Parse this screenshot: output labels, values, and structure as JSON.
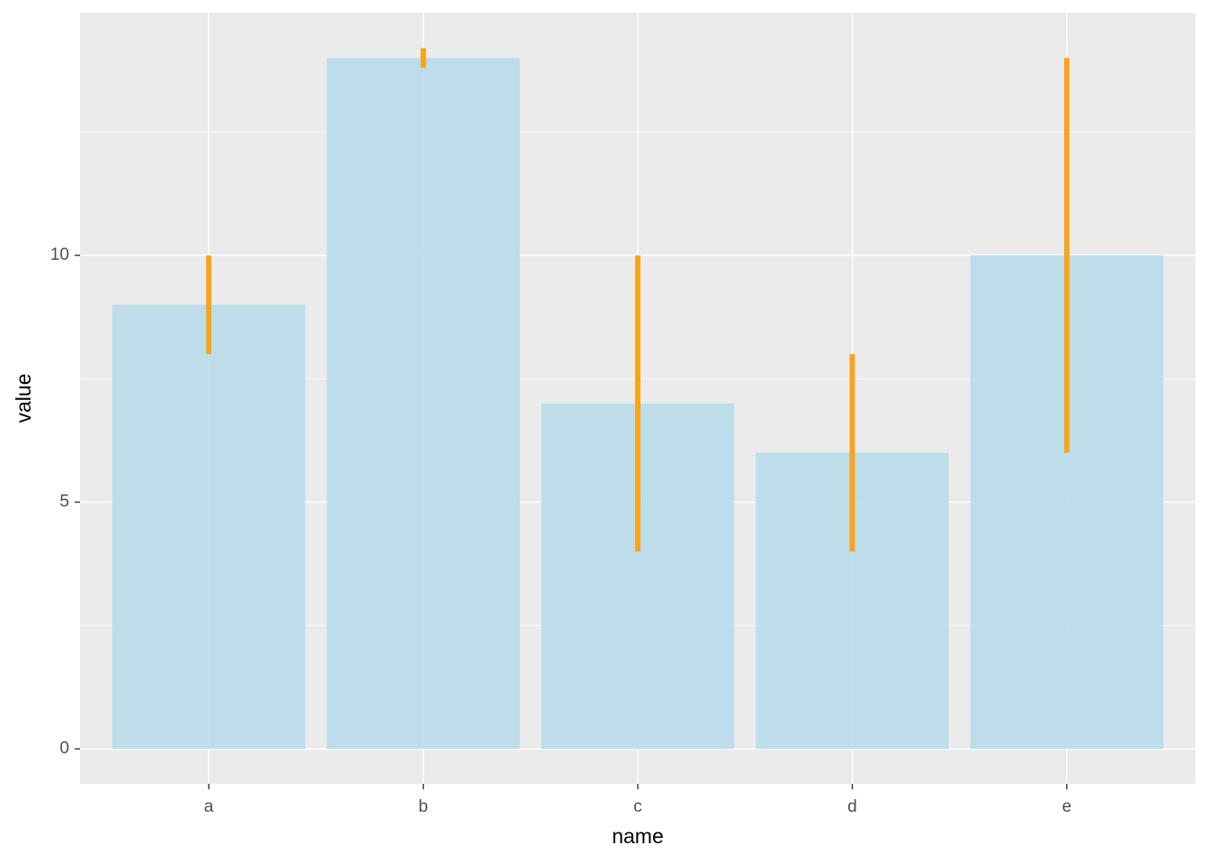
{
  "chart_data": {
    "type": "bar",
    "x_label": "name",
    "y_label": "value",
    "categories": [
      "a",
      "b",
      "c",
      "d",
      "e"
    ],
    "values": [
      9,
      14,
      7,
      6,
      10
    ],
    "errors": [
      1,
      0.2,
      3,
      2,
      4
    ],
    "color": "#b9dcea",
    "error_color": "#f7a51c",
    "ylim": [
      -0.71,
      14.92
    ],
    "yticks": [
      0,
      5,
      10
    ],
    "minor_yticks": [
      2.5,
      7.5,
      12.5
    ],
    "grid": true
  }
}
